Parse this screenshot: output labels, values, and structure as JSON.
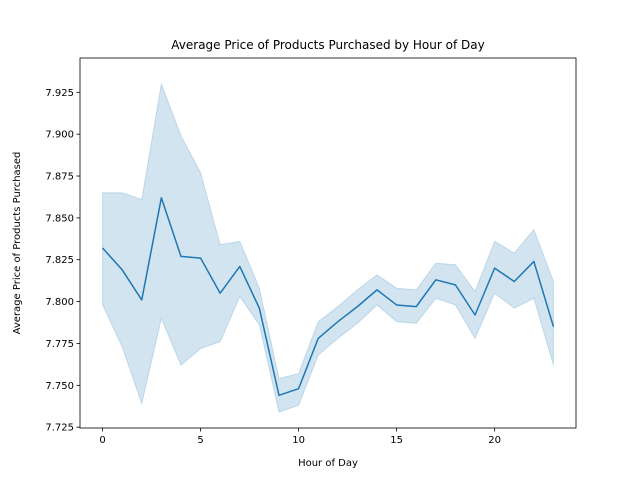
{
  "chart_data": {
    "type": "line",
    "title": "Average Price of Products Purchased by Hour of Day",
    "xlabel": "Hour of Day",
    "ylabel": "Average Price of Products Purchased",
    "xlim": [
      -1.15,
      24.15
    ],
    "ylim": [
      7.7245,
      7.9455
    ],
    "xticks": [
      0,
      5,
      10,
      15,
      20
    ],
    "yticks": [
      7.725,
      7.75,
      7.775,
      7.8,
      7.825,
      7.85,
      7.875,
      7.9,
      7.925
    ],
    "ytick_labels": [
      "7.725",
      "7.750",
      "7.775",
      "7.800",
      "7.825",
      "7.850",
      "7.875",
      "7.900",
      "7.925"
    ],
    "grid": false,
    "series": [
      {
        "x": [
          0,
          1,
          2,
          3,
          4,
          5,
          6,
          7,
          8,
          9,
          10,
          11,
          12,
          13,
          14,
          15,
          16,
          17,
          18,
          19,
          20,
          21,
          22,
          23
        ],
        "values": [
          7.832,
          7.819,
          7.801,
          7.862,
          7.827,
          7.826,
          7.805,
          7.821,
          7.796,
          7.744,
          7.748,
          7.778,
          7.788,
          7.797,
          7.807,
          7.798,
          7.797,
          7.813,
          7.81,
          7.792,
          7.82,
          7.812,
          7.824,
          7.785
        ],
        "ci_low": [
          7.798,
          7.773,
          7.739,
          7.79,
          7.762,
          7.772,
          7.776,
          7.803,
          7.786,
          7.734,
          7.738,
          7.768,
          7.778,
          7.787,
          7.798,
          7.788,
          7.787,
          7.802,
          7.798,
          7.778,
          7.805,
          7.796,
          7.802,
          7.762
        ],
        "ci_high": [
          7.865,
          7.865,
          7.861,
          7.93,
          7.899,
          7.877,
          7.834,
          7.836,
          7.808,
          7.754,
          7.757,
          7.788,
          7.797,
          7.807,
          7.816,
          7.808,
          7.807,
          7.823,
          7.822,
          7.806,
          7.836,
          7.829,
          7.843,
          7.812
        ]
      }
    ],
    "colors": {
      "line": "#1f77b4",
      "band": "#1f77b4"
    }
  }
}
